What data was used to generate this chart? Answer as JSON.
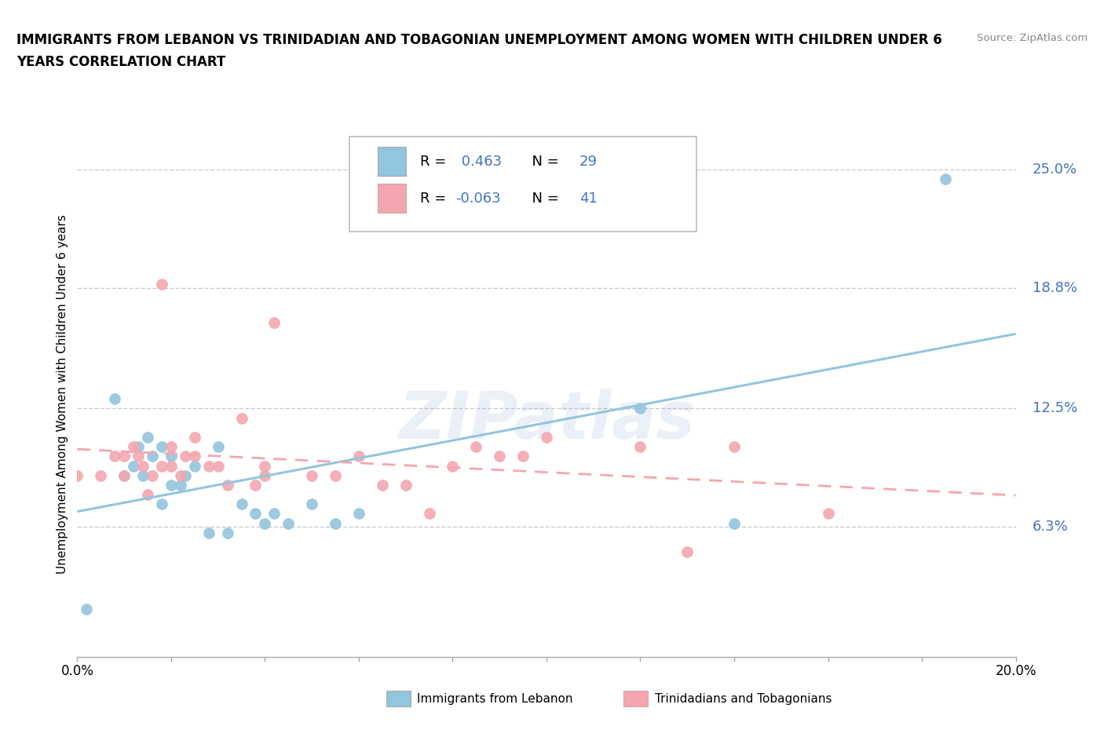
{
  "title_line1": "IMMIGRANTS FROM LEBANON VS TRINIDADIAN AND TOBAGONIAN UNEMPLOYMENT AMONG WOMEN WITH CHILDREN UNDER 6",
  "title_line2": "YEARS CORRELATION CHART",
  "source": "Source: ZipAtlas.com",
  "ylabel": "Unemployment Among Women with Children Under 6 years",
  "y_ticks": [
    0.063,
    0.125,
    0.188,
    0.25
  ],
  "y_tick_labels": [
    "6.3%",
    "12.5%",
    "18.8%",
    "25.0%"
  ],
  "x_range": [
    0.0,
    0.2
  ],
  "y_range": [
    -0.005,
    0.27
  ],
  "r_lebanon": "0.463",
  "n_lebanon": "29",
  "r_trini": "-0.063",
  "n_trini": "41",
  "color_lebanon": "#92c5de",
  "color_trini": "#f4a6b0",
  "color_text_blue": "#4472C4",
  "watermark": "ZIPatlas",
  "legend_label_lebanon": "Immigrants from Lebanon",
  "legend_label_trini": "Trinidadians and Tobagonians",
  "lebanon_scatter_x": [
    0.002,
    0.008,
    0.01,
    0.012,
    0.013,
    0.014,
    0.015,
    0.016,
    0.018,
    0.018,
    0.02,
    0.02,
    0.022,
    0.023,
    0.025,
    0.028,
    0.03,
    0.032,
    0.035,
    0.038,
    0.04,
    0.042,
    0.045,
    0.05,
    0.055,
    0.06,
    0.12,
    0.14,
    0.185
  ],
  "lebanon_scatter_y": [
    0.02,
    0.13,
    0.09,
    0.095,
    0.105,
    0.09,
    0.11,
    0.1,
    0.075,
    0.105,
    0.085,
    0.1,
    0.085,
    0.09,
    0.095,
    0.06,
    0.105,
    0.06,
    0.075,
    0.07,
    0.065,
    0.07,
    0.065,
    0.075,
    0.065,
    0.07,
    0.125,
    0.065,
    0.245
  ],
  "trini_scatter_x": [
    0.0,
    0.005,
    0.008,
    0.01,
    0.01,
    0.012,
    0.013,
    0.014,
    0.015,
    0.016,
    0.018,
    0.018,
    0.02,
    0.02,
    0.022,
    0.023,
    0.025,
    0.025,
    0.028,
    0.03,
    0.032,
    0.035,
    0.038,
    0.04,
    0.04,
    0.042,
    0.05,
    0.055,
    0.06,
    0.065,
    0.07,
    0.075,
    0.08,
    0.085,
    0.09,
    0.095,
    0.1,
    0.12,
    0.13,
    0.14,
    0.16
  ],
  "trini_scatter_y": [
    0.09,
    0.09,
    0.1,
    0.09,
    0.1,
    0.105,
    0.1,
    0.095,
    0.08,
    0.09,
    0.095,
    0.19,
    0.095,
    0.105,
    0.09,
    0.1,
    0.1,
    0.11,
    0.095,
    0.095,
    0.085,
    0.12,
    0.085,
    0.09,
    0.095,
    0.17,
    0.09,
    0.09,
    0.1,
    0.085,
    0.085,
    0.07,
    0.095,
    0.105,
    0.1,
    0.1,
    0.11,
    0.105,
    0.05,
    0.105,
    0.07
  ]
}
